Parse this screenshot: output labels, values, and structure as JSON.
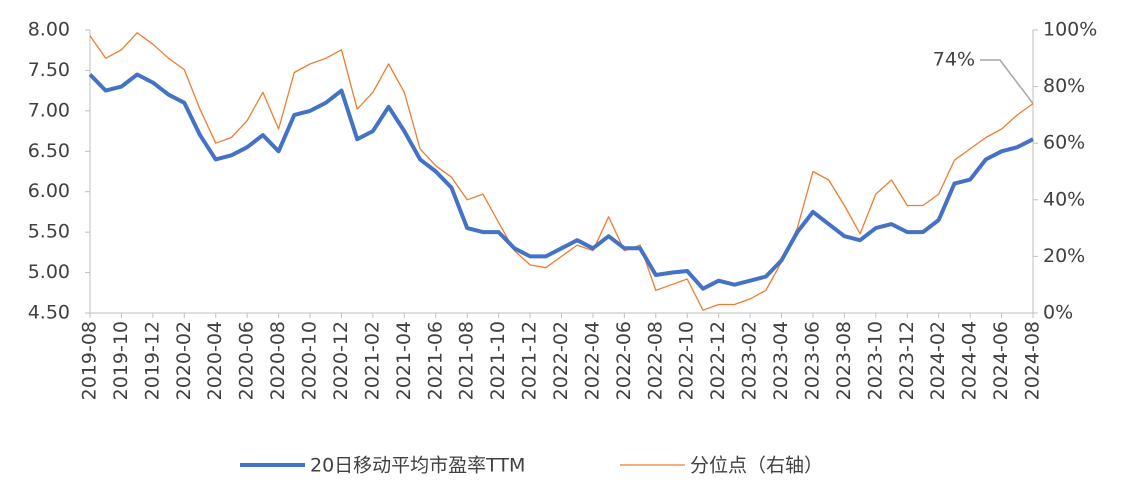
{
  "chart_data": {
    "type": "line",
    "categories": [
      "2019-08",
      null,
      "2019-10",
      null,
      "2019-12",
      null,
      "2020-02",
      null,
      "2020-04",
      null,
      "2020-06",
      null,
      "2020-08",
      null,
      "2020-10",
      null,
      "2020-12",
      null,
      "2021-02",
      null,
      "2021-04",
      null,
      "2021-06",
      null,
      "2021-08",
      null,
      "2021-10",
      null,
      "2021-12",
      null,
      "2022-02",
      null,
      "2022-04",
      null,
      "2022-06",
      null,
      "2022-08",
      null,
      "2022-10",
      null,
      "2022-12",
      null,
      "2023-02",
      null,
      "2023-04",
      null,
      "2023-06",
      null,
      "2023-08",
      null,
      "2023-10",
      null,
      "2023-12",
      null,
      "2024-02",
      null,
      "2024-04",
      null,
      "2024-06",
      null,
      "2024-08"
    ],
    "series": [
      {
        "name": "20日移动平均市盈率TTM",
        "color": "#4472c4",
        "values": [
          7.45,
          7.25,
          7.3,
          7.45,
          7.35,
          7.2,
          7.1,
          6.7,
          6.4,
          6.45,
          6.55,
          6.7,
          6.5,
          6.95,
          7.0,
          7.1,
          7.25,
          6.65,
          6.75,
          7.05,
          6.75,
          6.4,
          6.25,
          6.05,
          5.55,
          5.5,
          5.5,
          5.3,
          5.2,
          5.2,
          5.3,
          5.4,
          5.3,
          5.45,
          5.3,
          5.3,
          4.97,
          5.0,
          5.02,
          4.8,
          4.9,
          4.85,
          4.9,
          4.95,
          5.15,
          5.5,
          5.75,
          5.6,
          5.45,
          5.4,
          5.55,
          5.6,
          5.5,
          5.5,
          5.65,
          6.1,
          6.15,
          6.4,
          6.5,
          6.55,
          6.65
        ]
      },
      {
        "name": "分位点（右轴）",
        "color": "#ed7d31",
        "axis": "y2",
        "values": [
          98,
          90,
          93,
          99,
          95,
          90,
          86,
          72,
          60,
          62,
          68,
          78,
          65,
          85,
          88,
          90,
          93,
          72,
          78,
          88,
          78,
          58,
          52,
          48,
          40,
          42,
          32,
          22,
          17,
          16,
          20,
          24,
          22,
          34,
          22,
          24,
          8,
          10,
          12,
          1,
          3,
          3,
          5,
          8,
          18,
          30,
          50,
          47,
          38,
          28,
          42,
          47,
          38,
          38,
          42,
          54,
          58,
          62,
          65,
          70,
          74
        ],
        "value_labels": [
          null,
          null,
          null,
          null,
          null,
          null,
          null,
          null,
          null,
          null,
          null,
          null,
          null,
          null,
          null,
          null,
          null,
          null,
          null,
          null,
          null,
          null,
          null,
          null,
          null,
          null,
          null,
          null,
          null,
          null,
          null,
          null,
          null,
          null,
          null,
          null,
          null,
          null,
          null,
          null,
          null,
          null,
          null,
          null,
          null,
          null,
          null,
          null,
          null,
          null,
          null,
          null,
          null,
          null,
          null,
          null,
          null,
          null,
          null,
          null,
          "74%"
        ]
      }
    ],
    "ylim": [
      4.5,
      8.0
    ],
    "yticks": [
      {
        "value": 4.5,
        "label": "4.50"
      },
      {
        "value": 5,
        "label": "5.00"
      },
      {
        "value": 5.5,
        "label": "5.50"
      },
      {
        "value": 6,
        "label": "6.00"
      },
      {
        "value": 6.5,
        "label": "6.50"
      },
      {
        "value": 7,
        "label": "7.00"
      },
      {
        "value": 7.5,
        "label": "7.50"
      },
      {
        "value": 8,
        "label": "8.00"
      }
    ],
    "y2lim": [
      0,
      100
    ],
    "y2ticks": [
      {
        "value": 0,
        "label": "0%"
      },
      {
        "value": 20,
        "label": "20%"
      },
      {
        "value": 40,
        "label": "40%"
      },
      {
        "value": 60,
        "label": "60%"
      },
      {
        "value": 80,
        "label": "80%"
      },
      {
        "value": 100,
        "label": "100%"
      }
    ],
    "grid": false,
    "legend": "bottom"
  }
}
